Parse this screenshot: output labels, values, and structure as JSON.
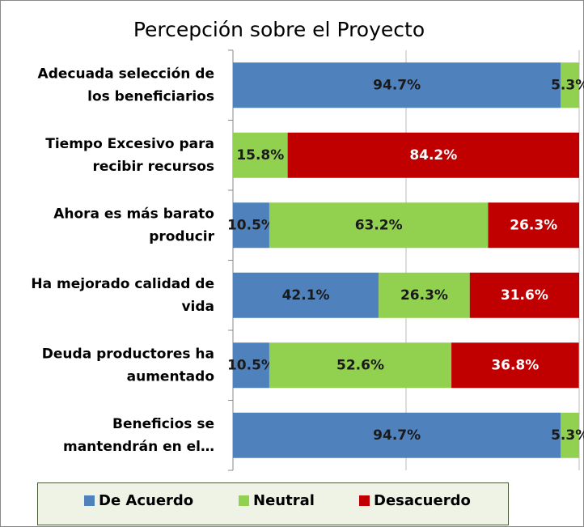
{
  "chart_data": {
    "type": "stacked_bar_horizontal",
    "title": "Percepción sobre el Proyecto",
    "categories": [
      "Adecuada selección de\nlos beneficiarios",
      "Tiempo Excesivo para\nrecibir recursos",
      "Ahora es más barato\nproducir",
      "Ha mejorado calidad de\nvida",
      "Deuda productores ha\naumentado",
      "Beneficios se\nmantendrán en el…"
    ],
    "series": [
      {
        "name": "De Acuerdo",
        "color": "#4f81bd",
        "values": [
          94.7,
          0,
          10.5,
          42.1,
          10.5,
          94.7
        ],
        "value_labels": [
          "94.7%",
          null,
          "10.5%",
          "42.1%",
          "10.5%",
          "94.7%"
        ]
      },
      {
        "name": "Neutral",
        "color": "#92d050",
        "values": [
          5.3,
          15.8,
          63.2,
          26.3,
          52.6,
          5.3
        ],
        "value_labels": [
          "5.3%",
          "15.8%",
          "63.2%",
          "26.3%",
          "52.6%",
          "5.3%"
        ]
      },
      {
        "name": "Desacuerdo",
        "color": "#c00000",
        "values": [
          0,
          84.2,
          26.3,
          31.6,
          36.8,
          0
        ],
        "value_labels": [
          null,
          "84.2%",
          "26.3%",
          "31.6%",
          "36.8%",
          null
        ]
      }
    ],
    "xlim": [
      0,
      100
    ],
    "xticks": [
      0,
      50,
      100
    ],
    "grid": true,
    "legend": "bottom"
  }
}
